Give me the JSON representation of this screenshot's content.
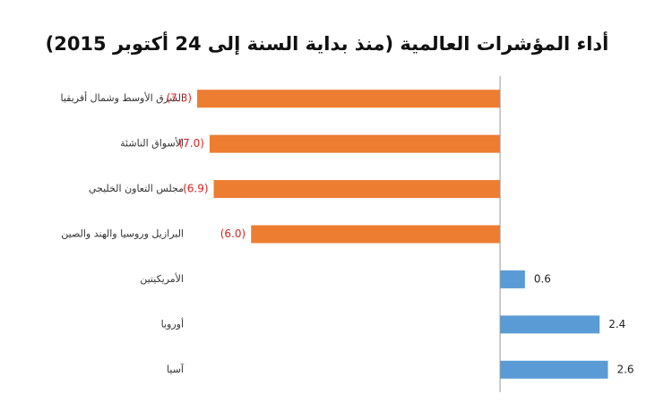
{
  "chart_data": {
    "type": "hbar",
    "title": "أداء المؤشرات العالمية (منذ بداية السنة إلى 24 أكتوبر 2015)",
    "categories": [
      "الشرق الأوسط وشمال أفريقيا",
      "الأسواق الناشئة",
      "مجلس التعاون الخليجي",
      "البرازيل وروسيا والهند والصين",
      "الأمريكيتين",
      "أوروبا",
      "آسيا"
    ],
    "values": [
      -7.3,
      -7.0,
      -6.9,
      -6.0,
      0.6,
      2.4,
      2.6
    ],
    "value_labels": [
      "(7.3)",
      "(7.0)",
      "(6.9)",
      "(6.0)",
      "0.6",
      "2.4",
      "2.6"
    ],
    "colors": [
      "#ed7d31",
      "#ed7d31",
      "#ed7d31",
      "#ed7d31",
      "#5b9bd5",
      "#5b9bd5",
      "#5b9bd5"
    ],
    "xlim": [
      -8,
      3
    ]
  }
}
